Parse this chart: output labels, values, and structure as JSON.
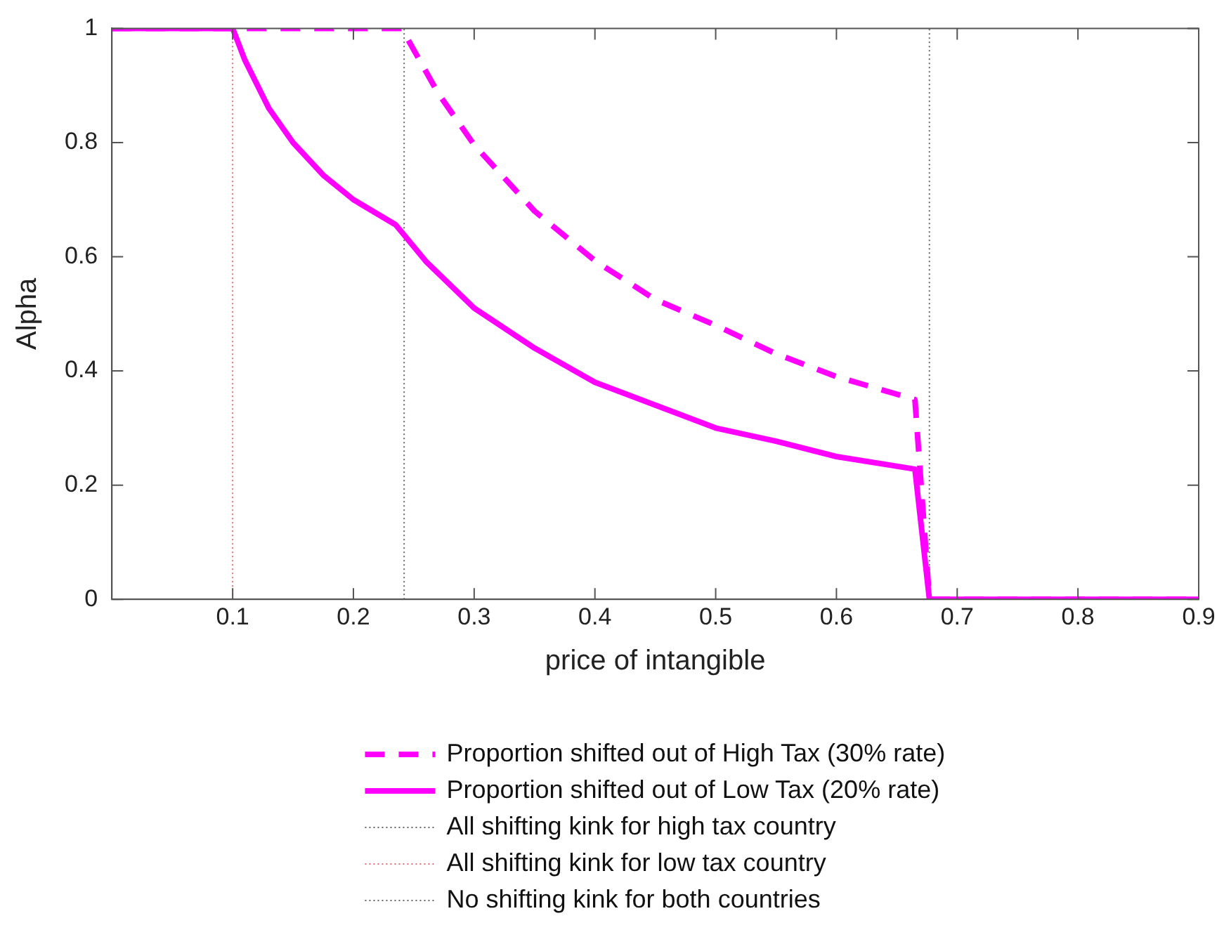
{
  "chart_data": {
    "type": "line",
    "xlabel": "price of intangible",
    "ylabel": "Alpha",
    "xlim": [
      0,
      0.9
    ],
    "ylim": [
      0,
      1
    ],
    "xticks": [
      0.1,
      0.2,
      0.3,
      0.4,
      0.5,
      0.6,
      0.7,
      0.8,
      0.9
    ],
    "yticks": [
      0,
      0.2,
      0.4,
      0.6,
      0.8,
      1
    ],
    "legend": "bottom",
    "marker": "none",
    "series": [
      {
        "name": "Proportion shifted out of High Tax (30% rate)",
        "color": "#ff00ff",
        "line_style": "dashed",
        "x": [
          0,
          0.24,
          0.27,
          0.3,
          0.35,
          0.4,
          0.45,
          0.5,
          0.55,
          0.6,
          0.665,
          0.677,
          0.9
        ],
        "values": [
          1,
          1,
          0.887,
          0.796,
          0.68,
          0.593,
          0.525,
          0.48,
          0.43,
          0.39,
          0.35,
          0,
          0
        ]
      },
      {
        "name": "Proportion shifted out of Low Tax (20% rate)",
        "color": "#ff00ff",
        "line_style": "solid",
        "x": [
          0,
          0.1,
          0.11,
          0.13,
          0.15,
          0.175,
          0.2,
          0.235,
          0.26,
          0.3,
          0.35,
          0.4,
          0.45,
          0.5,
          0.55,
          0.6,
          0.665,
          0.677,
          0.9
        ],
        "values": [
          1,
          1,
          0.945,
          0.86,
          0.8,
          0.743,
          0.7,
          0.656,
          0.592,
          0.51,
          0.44,
          0.38,
          0.34,
          0.3,
          0.277,
          0.25,
          0.228,
          0,
          0
        ]
      },
      {
        "name": "All shifting kink for high tax country",
        "color": "#666666",
        "line_style": "dotted",
        "x": [
          0.242,
          0.242
        ],
        "values": [
          0,
          1
        ]
      },
      {
        "name": "All shifting kink for low tax country",
        "color": "#e07070",
        "line_style": "dotted",
        "x": [
          0.1,
          0.1
        ],
        "values": [
          0,
          1
        ]
      },
      {
        "name": "No shifting kink for both countries",
        "color": "#666666",
        "line_style": "dotted",
        "x": [
          0.677,
          0.677
        ],
        "values": [
          0,
          1
        ]
      }
    ]
  }
}
